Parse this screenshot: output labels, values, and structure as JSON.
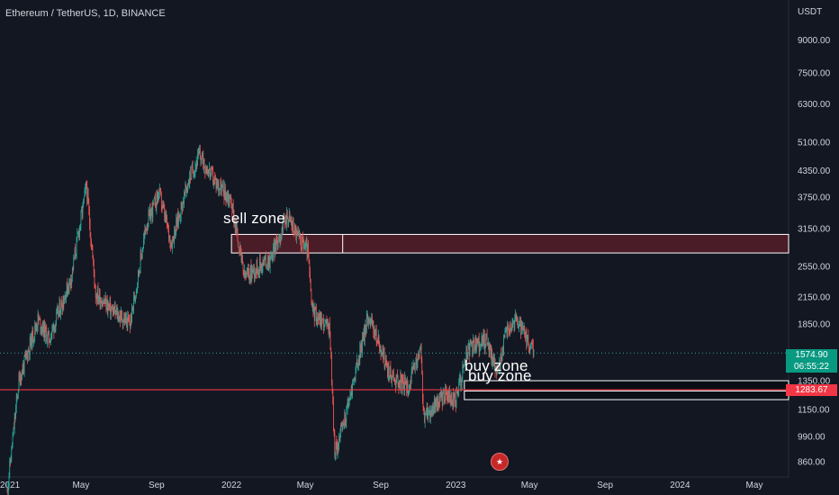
{
  "header": {
    "symbol_title": "Ethereum / TetherUS, 1D, BINANCE"
  },
  "currency_label": "USDT",
  "icons": {
    "event_marker": "us-flag-icon"
  },
  "colors": {
    "background": "#131722",
    "up_candle": "#26a69a",
    "down_candle": "#ef5350",
    "support_line": "#f23645",
    "sell_zone_fill": "#4a1c27",
    "buy_zone_fill": "#0b0e14",
    "last_price_tag": "#089981",
    "support_tag": "#f23645"
  },
  "chart_data": {
    "type": "candlestick",
    "title": "Ethereum / TetherUS, 1D, BINANCE",
    "y_unit": "USDT",
    "y_scale": "log",
    "y_ticks": [
      860,
      990,
      1150,
      1350,
      1850,
      2150,
      2550,
      3150,
      3750,
      4350,
      5100,
      6300,
      7500,
      9000
    ],
    "y_tick_labels": [
      "860.00",
      "990.00",
      "1150.00",
      "1350.00",
      "1850.00",
      "2150.00",
      "2550.00",
      "3150.00",
      "3750.00",
      "4350.00",
      "5100.00",
      "6300.00",
      "7500.00",
      "9000.00"
    ],
    "x_tick_dates": [
      "2021-01-01",
      "2021-05-01",
      "2021-09-01",
      "2022-01-01",
      "2022-05-01",
      "2022-09-01",
      "2023-01-01",
      "2023-05-01",
      "2023-09-01",
      "2024-01-01",
      "2024-05-01"
    ],
    "x_tick_labels": [
      "2021",
      "May",
      "Sep",
      "2022",
      "May",
      "Sep",
      "2023",
      "May",
      "Sep",
      "2024",
      "May"
    ],
    "price_path": [
      [
        "2021-01-01",
        730
      ],
      [
        "2021-01-20",
        1350
      ],
      [
        "2021-02-20",
        1900
      ],
      [
        "2021-03-10",
        1700
      ],
      [
        "2021-04-15",
        2400
      ],
      [
        "2021-05-10",
        4000
      ],
      [
        "2021-05-25",
        2200
      ],
      [
        "2021-06-20",
        2000
      ],
      [
        "2021-07-20",
        1850
      ],
      [
        "2021-08-15",
        3200
      ],
      [
        "2021-09-05",
        3850
      ],
      [
        "2021-09-25",
        2900
      ],
      [
        "2021-10-25",
        4200
      ],
      [
        "2021-11-10",
        4750
      ],
      [
        "2021-12-05",
        4100
      ],
      [
        "2021-12-31",
        3700
      ],
      [
        "2022-01-22",
        2400
      ],
      [
        "2022-02-20",
        2600
      ],
      [
        "2022-03-05",
        2650
      ],
      [
        "2022-04-02",
        3400
      ],
      [
        "2022-04-20",
        3000
      ],
      [
        "2022-05-05",
        2800
      ],
      [
        "2022-05-12",
        2000
      ],
      [
        "2022-06-10",
        1800
      ],
      [
        "2022-06-18",
        900
      ],
      [
        "2022-07-05",
        1100
      ],
      [
        "2022-08-12",
        1950
      ],
      [
        "2022-09-05",
        1550
      ],
      [
        "2022-09-15",
        1400
      ],
      [
        "2022-10-15",
        1300
      ],
      [
        "2022-11-05",
        1600
      ],
      [
        "2022-11-10",
        1100
      ],
      [
        "2022-12-15",
        1250
      ],
      [
        "2022-12-31",
        1200
      ],
      [
        "2023-01-20",
        1600
      ],
      [
        "2023-02-20",
        1700
      ],
      [
        "2023-03-10",
        1400
      ],
      [
        "2023-03-25",
        1800
      ],
      [
        "2023-04-10",
        1900
      ],
      [
        "2023-04-25",
        1700
      ],
      [
        "2023-05-08",
        1575
      ]
    ],
    "last_price": 1574.9,
    "last_price_label": "1574.90",
    "countdown_label": "06:55:22",
    "support_level": 1283.67,
    "support_level_label": "1283.67",
    "zones": [
      {
        "label": "sell zone",
        "low": 2750,
        "high": 3050,
        "start": "2022-01-01",
        "kind": "sell"
      },
      {
        "label": "buy zone",
        "low": 1283.67,
        "high": 1350,
        "start": "2023-01-15",
        "kind": "buy"
      },
      {
        "label": "buy zone",
        "low": 1215,
        "high": 1275,
        "start": "2023-01-15",
        "kind": "buy"
      }
    ],
    "grid": false,
    "legend": "none"
  }
}
